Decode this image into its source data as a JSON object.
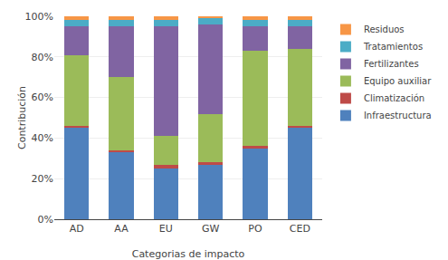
{
  "chart_data": {
    "type": "bar",
    "stacked": true,
    "categories": [
      "AD",
      "AA",
      "EU",
      "GW",
      "PO",
      "CED"
    ],
    "series": [
      {
        "name": "Infraestructura",
        "color": "#4F81BD",
        "values": [
          45,
          33,
          25,
          27,
          35,
          45
        ]
      },
      {
        "name": "Climatización",
        "color": "#BE4B48",
        "values": [
          1,
          1,
          2,
          1,
          1,
          1
        ]
      },
      {
        "name": "Equipo auxiliar",
        "color": "#9BBB59",
        "values": [
          35,
          36,
          14,
          24,
          47,
          38
        ]
      },
      {
        "name": "Fertilizantes",
        "color": "#8064A2",
        "values": [
          14,
          25,
          54,
          44,
          12,
          11
        ]
      },
      {
        "name": "Tratamientos",
        "color": "#4BACC6",
        "values": [
          3,
          3,
          3,
          3,
          3,
          3
        ]
      },
      {
        "name": "Residuos",
        "color": "#F79646",
        "values": [
          2,
          2,
          2,
          1,
          2,
          2
        ]
      }
    ],
    "xlabel": "Categorias de impacto",
    "ylabel": "Contribución",
    "ylim": [
      0,
      100
    ],
    "yticks": [
      {
        "value": 0,
        "label": "0%"
      },
      {
        "value": 20,
        "label": "20%"
      },
      {
        "value": 40,
        "label": "40%"
      },
      {
        "value": 60,
        "label": "60%"
      },
      {
        "value": 80,
        "label": "80%"
      },
      {
        "value": 100,
        "label": "100%"
      }
    ],
    "grid": true,
    "legend": "right"
  }
}
